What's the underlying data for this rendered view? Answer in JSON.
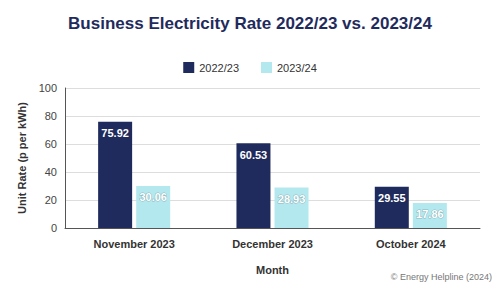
{
  "chart_data": {
    "type": "bar",
    "title": "Business Electricity Rate 2022/23 vs. 2023/24",
    "x_label": "Month",
    "y_label": "Unit Rate (p per kWh)",
    "annotation": "© Energy Helpline (2024)",
    "categories": [
      "November 2023",
      "December 2023",
      "October 2024"
    ],
    "series": [
      {
        "name": "2022/23",
        "color": "#1f2b5c",
        "values": [
          75.92,
          60.53,
          29.55
        ]
      },
      {
        "name": "2023/24",
        "color": "#b3e8ef",
        "values": [
          30.06,
          28.93,
          17.86
        ]
      }
    ],
    "ylim": [
      0,
      100
    ],
    "yticks": [
      0,
      20,
      40,
      60,
      80,
      100
    ],
    "grid": true,
    "legend": "top",
    "data_labels": true
  }
}
